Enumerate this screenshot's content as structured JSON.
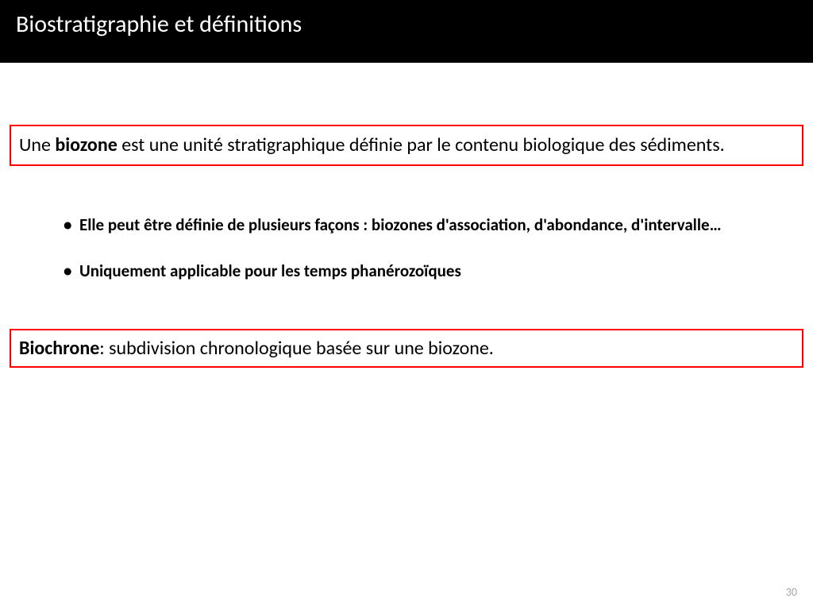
{
  "title": "Biostratigraphie et définitions",
  "definition1": {
    "prefix": "Une ",
    "bold": "biozone",
    "suffix": " est une unité stratigraphique définie par le contenu biologique des sédiments."
  },
  "bullets": [
    "Elle peut être définie de plusieurs façons : biozones d'association, d'abondance, d'intervalle…",
    "Uniquement applicable pour les temps phanérozoïques"
  ],
  "definition2": {
    "bold": "Biochrone",
    "suffix": ": subdivision chronologique basée sur une biozone."
  },
  "pageNumber": "30",
  "colors": {
    "titleBg": "#000000",
    "titleFg": "#ffffff",
    "boxBorder": "#ff0000",
    "text": "#000000",
    "pageNum": "#a6a6a6",
    "background": "#ffffff"
  }
}
